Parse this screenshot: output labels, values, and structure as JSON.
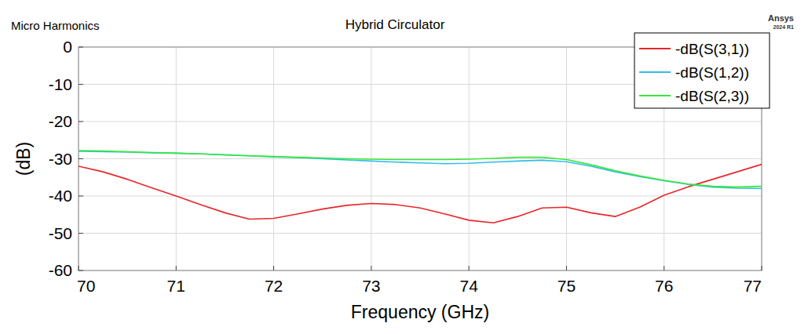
{
  "chart_data": {
    "type": "line",
    "title": "Hybrid Circulator",
    "annotations": [
      "Micro Harmonics",
      "Ansys",
      "2024 R1"
    ],
    "x_label": "Frequency (GHz)",
    "y_label": "(dB)",
    "x": [
      70,
      70.25,
      70.5,
      70.75,
      71,
      71.25,
      71.5,
      71.75,
      72,
      72.25,
      72.5,
      72.75,
      73,
      73.25,
      73.5,
      73.75,
      74,
      74.25,
      74.5,
      74.75,
      75,
      75.25,
      75.5,
      75.75,
      76,
      76.25,
      76.5,
      76.75,
      77
    ],
    "series": [
      {
        "name": "-dB(S(3,1))",
        "color": "#e8262a",
        "values": [
          -32,
          -33.5,
          -35.5,
          -37.8,
          -40,
          -42.3,
          -44.5,
          -46.2,
          -46,
          -44.8,
          -43.5,
          -42.5,
          -42,
          -42.3,
          -43.2,
          -44.8,
          -46.5,
          -47.2,
          -45.5,
          -43.2,
          -43,
          -44.5,
          -45.5,
          -43,
          -39.8,
          -37.5,
          -35.5,
          -33.5,
          -31.5
        ]
      },
      {
        "name": "-dB(S(1,2))",
        "color": "#33bde8",
        "values": [
          -28,
          -28.1,
          -28.2,
          -28.4,
          -28.5,
          -28.7,
          -29,
          -29.2,
          -29.5,
          -29.7,
          -30,
          -30.3,
          -30.6,
          -30.9,
          -31.1,
          -31.3,
          -31.2,
          -30.9,
          -30.6,
          -30.4,
          -30.8,
          -32,
          -33.5,
          -34.8,
          -35.9,
          -36.9,
          -37.6,
          -37.9,
          -38
        ]
      },
      {
        "name": "-dB(S(2,3))",
        "color": "#36e836",
        "values": [
          -27.8,
          -27.9,
          -28.1,
          -28.3,
          -28.5,
          -28.7,
          -28.9,
          -29.2,
          -29.4,
          -29.6,
          -29.8,
          -30,
          -30.1,
          -30.2,
          -30.2,
          -30.2,
          -30.1,
          -29.9,
          -29.6,
          -29.6,
          -30.2,
          -31.6,
          -33.2,
          -34.6,
          -35.8,
          -36.8,
          -37.4,
          -37.6,
          -37.4
        ]
      }
    ],
    "xlim": [
      70,
      77
    ],
    "ylim": [
      -60,
      0
    ],
    "xticks": [
      70,
      71,
      72,
      73,
      74,
      75,
      76,
      77
    ],
    "yticks": [
      -60,
      -50,
      -40,
      -30,
      -20,
      -10,
      0
    ],
    "grid": true,
    "legend": "top-right"
  }
}
